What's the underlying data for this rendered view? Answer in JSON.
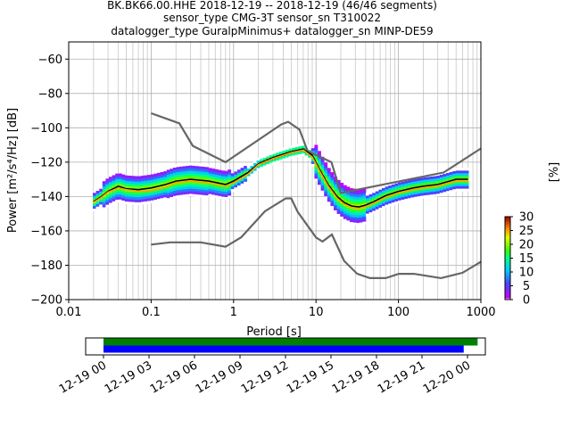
{
  "title_lines": [
    "BK.BK66.00.HHE   2018-12-19 -- 2018-12-19  (46/46 segments)",
    "sensor_type CMG-3T sensor_sn T310022",
    "datalogger_type GuralpMinimus+ datalogger_sn MINP-DE59"
  ],
  "chart_data": {
    "type": "line",
    "title": "BK.BK66.00.HHE   2018-12-19 -- 2018-12-19  (46/46 segments)",
    "xlabel": "Period [s]",
    "ylabel": "Power [m²/s⁴/Hz] [dB]",
    "xscale": "log",
    "xlim": [
      0.01,
      1000
    ],
    "ylim": [
      -200,
      -50
    ],
    "xticks": [
      0.01,
      0.1,
      1,
      10,
      100,
      1000
    ],
    "xtick_labels": [
      "0.01",
      "0.1",
      "1",
      "10",
      "100",
      "1000"
    ],
    "yticks": [
      -200,
      -180,
      -160,
      -140,
      -120,
      -100,
      -80,
      -60
    ],
    "ytick_labels": [
      "−200",
      "−180",
      "−160",
      "−140",
      "−120",
      "−100",
      "−80",
      "−60"
    ],
    "grid": true,
    "series": [
      {
        "role": "high-noise-model",
        "color": "#666666",
        "x": [
          0.1,
          0.22,
          0.32,
          0.8,
          3.8,
          4.6,
          6.3,
          7.9,
          15.4,
          20,
          354.8,
          1000
        ],
        "y": [
          -91.5,
          -97.4,
          -110.5,
          -120,
          -98,
          -96.5,
          -101,
          -113.5,
          -120,
          -138,
          -126,
          -112
        ]
      },
      {
        "role": "low-noise-model",
        "color": "#666666",
        "x": [
          0.1,
          0.17,
          0.4,
          0.8,
          1.24,
          2.4,
          4.3,
          5,
          6,
          10,
          12,
          15.6,
          21.9,
          31.6,
          45,
          70,
          101,
          154,
          328,
          600,
          1000
        ],
        "y": [
          -168,
          -166.7,
          -166.7,
          -169.2,
          -163.7,
          -148.6,
          -141.1,
          -141.1,
          -149,
          -163.8,
          -166.2,
          -162.1,
          -177.5,
          -185,
          -187.5,
          -187.5,
          -185,
          -185,
          -187.5,
          -184.4,
          -178
        ]
      },
      {
        "role": "mean-psd",
        "color": "#000000",
        "x": [
          0.02,
          0.025,
          0.03,
          0.04,
          0.05,
          0.07,
          0.1,
          0.15,
          0.2,
          0.3,
          0.5,
          0.8,
          1,
          1.5,
          2,
          3,
          5,
          7,
          9,
          11,
          14,
          18,
          22,
          27,
          33,
          40,
          50,
          70,
          100,
          150,
          200,
          300,
          500,
          700
        ],
        "y": [
          -143,
          -140,
          -137,
          -134,
          -135.5,
          -136,
          -135,
          -133,
          -131,
          -130,
          -131,
          -133,
          -131,
          -126,
          -121,
          -117.5,
          -114,
          -112.5,
          -116,
          -124,
          -133,
          -140,
          -143.5,
          -145.5,
          -146,
          -145,
          -143,
          -139.5,
          -137,
          -135,
          -134,
          -133,
          -130,
          -130
        ]
      },
      {
        "role": "mode-psd",
        "color": "#ffa500",
        "x": [
          0.02,
          0.025,
          0.03,
          0.04,
          0.05,
          0.07,
          0.1,
          0.15,
          0.2,
          0.3,
          0.5,
          0.8,
          1,
          1.5,
          2,
          3,
          5,
          7,
          9,
          11,
          14,
          18,
          22,
          27,
          33,
          40,
          50,
          70,
          100,
          150,
          200,
          300,
          500,
          700
        ],
        "y": [
          -143.5,
          -140.5,
          -137.5,
          -135,
          -136,
          -137,
          -136.5,
          -134.5,
          -132,
          -131,
          -132,
          -134,
          -132,
          -127,
          -121.5,
          -118,
          -114.5,
          -113,
          -117,
          -125,
          -134,
          -141,
          -144.5,
          -146.5,
          -147,
          -146,
          -144,
          -140.5,
          -138,
          -136,
          -135,
          -134,
          -131,
          -131
        ]
      }
    ],
    "colorbar": {
      "label": "[%]",
      "range": [
        0,
        30
      ],
      "ticks": [
        0,
        5,
        10,
        15,
        20,
        25,
        30
      ]
    },
    "data_availability": {
      "xtick_labels": [
        "12-19 00",
        "12-19 03",
        "12-19 06",
        "12-19 09",
        "12-19 12",
        "12-19 15",
        "12-19 18",
        "12-19 21",
        "12-20 00"
      ],
      "bars": [
        {
          "color": "#008000",
          "start": "12-19 00:00",
          "end": "12-20 00:40"
        },
        {
          "color": "#0000ff",
          "start": "12-19 00:00",
          "end": "12-19 23:45"
        }
      ]
    }
  }
}
